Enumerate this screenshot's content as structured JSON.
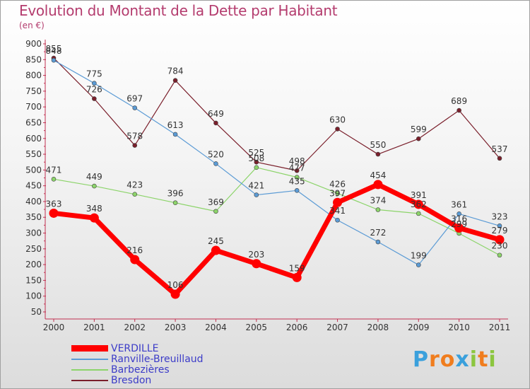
{
  "chart_data": {
    "type": "line",
    "title": "Evolution du Montant de la Dette par Habitant",
    "subtitle": "(en €)",
    "categories": [
      "2000",
      "2001",
      "2002",
      "2003",
      "2004",
      "2005",
      "2006",
      "2007",
      "2008",
      "2009",
      "2010",
      "2011"
    ],
    "ylim": [
      50,
      900
    ],
    "yticks": [
      50,
      100,
      150,
      200,
      250,
      300,
      350,
      400,
      450,
      500,
      550,
      600,
      650,
      700,
      750,
      800,
      850,
      900
    ],
    "grid": false,
    "legend_position": "bottom-left",
    "series": [
      {
        "name": "VERDILLE",
        "color": "#ff0000",
        "values": [
          363,
          348,
          216,
          106,
          245,
          203,
          159,
          397,
          454,
          391,
          316,
          279
        ]
      },
      {
        "name": "Ranville-Breuillaud",
        "color": "#5b9bd5",
        "values": [
          848,
          775,
          697,
          613,
          520,
          421,
          435,
          341,
          272,
          199,
          361,
          323
        ]
      },
      {
        "name": "Barbezières",
        "color": "#8cd46a",
        "values": [
          471,
          449,
          423,
          396,
          369,
          508,
          477,
          426,
          374,
          362,
          299,
          230
        ]
      },
      {
        "name": "Bresdon",
        "color": "#7a1f2b",
        "values": [
          855,
          726,
          578,
          784,
          649,
          525,
          498,
          630,
          550,
          599,
          689,
          537
        ]
      }
    ]
  },
  "logo": {
    "letters": [
      "P",
      "r",
      "o",
      "x",
      "i",
      "t",
      "i"
    ],
    "colors": [
      "#3aa0dc",
      "#f07d1e",
      "#f07d1e",
      "#3aa0dc",
      "#8cc63f",
      "#f07d1e",
      "#8cc63f"
    ]
  }
}
